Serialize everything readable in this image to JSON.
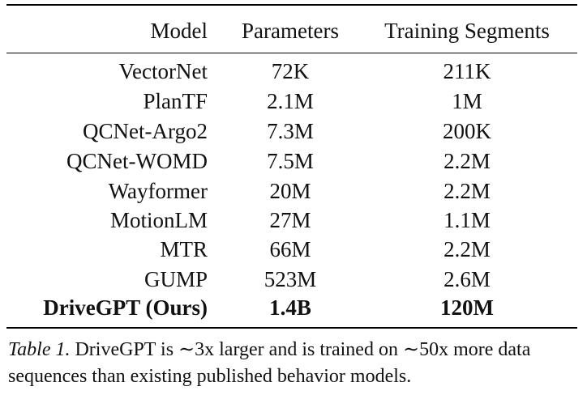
{
  "table": {
    "headers": {
      "model": "Model",
      "parameters": "Parameters",
      "training": "Training Segments"
    },
    "rows": [
      {
        "model": "VectorNet",
        "parameters": "72K",
        "training": "211K"
      },
      {
        "model": "PlanTF",
        "parameters": "2.1M",
        "training": "1M"
      },
      {
        "model": "QCNet-Argo2",
        "parameters": "7.3M",
        "training": "200K"
      },
      {
        "model": "QCNet-WOMD",
        "parameters": "7.5M",
        "training": "2.2M"
      },
      {
        "model": "Wayformer",
        "parameters": "20M",
        "training": "2.2M"
      },
      {
        "model": "MotionLM",
        "parameters": "27M",
        "training": "1.1M"
      },
      {
        "model": "MTR",
        "parameters": "66M",
        "training": "2.2M"
      },
      {
        "model": "GUMP",
        "parameters": "523M",
        "training": "2.6M"
      },
      {
        "model": "DriveGPT (Ours)",
        "parameters": "1.4B",
        "training": "120M"
      }
    ]
  },
  "caption": {
    "label": "Table 1.",
    "text": " DriveGPT is ∼3x larger and is trained on ∼50x more data sequences than existing published behavior models."
  }
}
